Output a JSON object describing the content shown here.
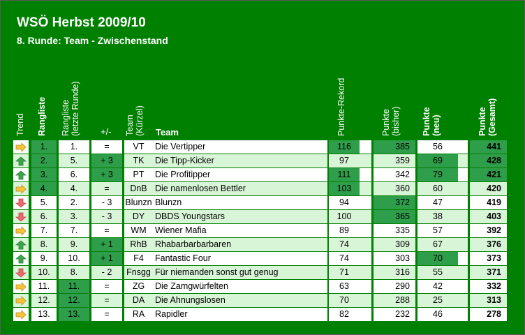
{
  "title": "WSÖ Herbst 2009/10",
  "subtitle": "8. Runde: Team - Zwischenstand",
  "columns": {
    "trend": "Trend",
    "rang": "Rangliste",
    "rang_prev_1": "Rangliste",
    "rang_prev_2": "(letzte Runde)",
    "diff": "+/-",
    "kurz_1": "Team",
    "kurz_2": "(Kürzel)",
    "team": "Team",
    "rekord": "Punkte-Rekord",
    "bisher_1": "Punkte",
    "bisher_2": "(bisher)",
    "neu_1": "Punkte",
    "neu_2": "(neu)",
    "gesamt_1": "Punkte",
    "gesamt_2": "(Gesamt)"
  },
  "colors": {
    "frame_green": "#008000",
    "dark_green_cell": "#2e9e4a",
    "light_green_row": "#d8f5d8",
    "arrow_up": "#3aa64b",
    "arrow_down": "#ec6a6a",
    "arrow_side": "#f6c33b"
  },
  "rows": [
    {
      "trend": "right",
      "rank": "1.",
      "prev": "1.",
      "diff": "=",
      "short": "VT",
      "team": "Die Vertipper",
      "rekord": "116",
      "bisher": "385",
      "neu": "56",
      "gesamt": "441"
    },
    {
      "trend": "up",
      "rank": "2.",
      "prev": "5.",
      "diff": "+ 3",
      "short": "TK",
      "team": "Die Tipp-Kicker",
      "rekord": "97",
      "bisher": "359",
      "neu": "69",
      "gesamt": "428"
    },
    {
      "trend": "up",
      "rank": "3.",
      "prev": "6.",
      "diff": "+ 3",
      "short": "PT",
      "team": "Die Profitipper",
      "rekord": "111",
      "bisher": "342",
      "neu": "79",
      "gesamt": "421"
    },
    {
      "trend": "right",
      "rank": "4.",
      "prev": "4.",
      "diff": "=",
      "short": "DnB",
      "team": "Die namenlosen Bettler",
      "rekord": "103",
      "bisher": "360",
      "neu": "60",
      "gesamt": "420"
    },
    {
      "trend": "down",
      "rank": "5.",
      "prev": "2.",
      "diff": "- 3",
      "short": "Blunzn",
      "team": "Blunzn",
      "rekord": "94",
      "bisher": "372",
      "neu": "47",
      "gesamt": "419"
    },
    {
      "trend": "down",
      "rank": "6.",
      "prev": "3.",
      "diff": "- 3",
      "short": "DY",
      "team": "DBDS Youngstars",
      "rekord": "100",
      "bisher": "365",
      "neu": "38",
      "gesamt": "403"
    },
    {
      "trend": "right",
      "rank": "7.",
      "prev": "7.",
      "diff": "=",
      "short": "WM",
      "team": "Wiener Mafia",
      "rekord": "89",
      "bisher": "335",
      "neu": "57",
      "gesamt": "392"
    },
    {
      "trend": "up",
      "rank": "8.",
      "prev": "9.",
      "diff": "+ 1",
      "short": "RhB",
      "team": "Rhabarbarbarbaren",
      "rekord": "74",
      "bisher": "309",
      "neu": "67",
      "gesamt": "376"
    },
    {
      "trend": "up",
      "rank": "9.",
      "prev": "10.",
      "diff": "+ 1",
      "short": "F4",
      "team": "Fantastic Four",
      "rekord": "74",
      "bisher": "303",
      "neu": "70",
      "gesamt": "373"
    },
    {
      "trend": "down",
      "rank": "10.",
      "prev": "8.",
      "diff": "- 2",
      "short": "Fnsgg",
      "team": "Für niemanden sonst gut genug",
      "rekord": "71",
      "bisher": "316",
      "neu": "55",
      "gesamt": "371"
    },
    {
      "trend": "right",
      "rank": "11.",
      "prev": "11.",
      "diff": "=",
      "short": "ZG",
      "team": "Die Zamgwürfelten",
      "rekord": "63",
      "bisher": "290",
      "neu": "42",
      "gesamt": "332"
    },
    {
      "trend": "right",
      "rank": "12.",
      "prev": "12.",
      "diff": "=",
      "short": "DA",
      "team": "Die Ahnungslosen",
      "rekord": "70",
      "bisher": "288",
      "neu": "25",
      "gesamt": "313"
    },
    {
      "trend": "right",
      "rank": "13.",
      "prev": "13.",
      "diff": "=",
      "short": "RA",
      "team": "Rapidler",
      "rekord": "82",
      "bisher": "232",
      "neu": "46",
      "gesamt": "278"
    }
  ],
  "highlights": {
    "rank": [
      "1.",
      "2.",
      "3.",
      "4."
    ],
    "prev": [
      "11.",
      "12.",
      "13."
    ],
    "diff": [
      "+ 3",
      "+ 1"
    ],
    "rekord": [
      "116",
      "111",
      "103"
    ],
    "bisher": [
      "385",
      "372",
      "365"
    ],
    "neu": [
      "69",
      "79",
      "70"
    ],
    "gesamt": [
      "441",
      "428",
      "421"
    ]
  }
}
